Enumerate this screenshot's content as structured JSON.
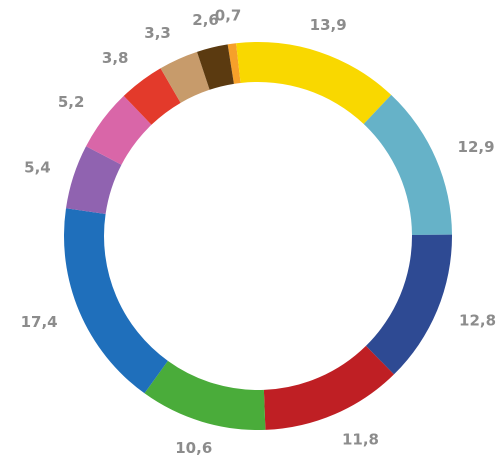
{
  "chart_data": {
    "type": "pie",
    "variant": "donut",
    "title": "",
    "legend": "none",
    "slices": [
      {
        "value_label": "0,7",
        "value": 0.7,
        "color": "#f6a02a"
      },
      {
        "value_label": "13,9",
        "value": 13.9,
        "color": "#f9d800"
      },
      {
        "value_label": "12,9",
        "value": 12.9,
        "color": "#66b2c8"
      },
      {
        "value_label": "12,8",
        "value": 12.8,
        "color": "#2e4a93"
      },
      {
        "value_label": "11,8",
        "value": 11.8,
        "color": "#bf1f24"
      },
      {
        "value_label": "10,6",
        "value": 10.6,
        "color": "#4aac3a"
      },
      {
        "value_label": "17,4",
        "value": 17.4,
        "color": "#1f6fbb"
      },
      {
        "value_label": "5,4",
        "value": 5.4,
        "color": "#9063b0"
      },
      {
        "value_label": "5,2",
        "value": 5.2,
        "color": "#d966a8"
      },
      {
        "value_label": "3,8",
        "value": 3.8,
        "color": "#e33a2b"
      },
      {
        "value_label": "3,3",
        "value": 3.3,
        "color": "#c79b6b"
      },
      {
        "value_label": "2,6",
        "value": 2.6,
        "color": "#5b3a10"
      }
    ]
  }
}
